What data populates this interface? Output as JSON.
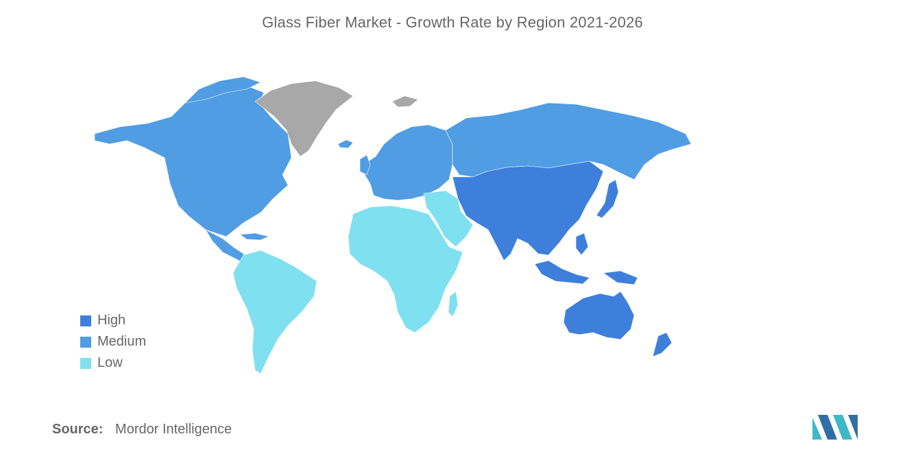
{
  "title": "Glass Fiber Market - Growth Rate by Region 2021-2026",
  "legend": [
    {
      "key": "high",
      "label": "High",
      "color": "#3e7fdc"
    },
    {
      "key": "medium",
      "label": "Medium",
      "color": "#519de4"
    },
    {
      "key": "low",
      "label": "Low",
      "color": "#7fe0ef"
    }
  ],
  "no_data_color": "#a8a8a8",
  "regions": {
    "north_america": "medium",
    "europe": "medium",
    "russia": "medium",
    "asia_pacific": "high",
    "australia": "high",
    "south_america": "low",
    "africa": "low",
    "middle_east": "low",
    "greenland": "none"
  },
  "source": {
    "label": "Source:",
    "value": "Mordor Intelligence"
  },
  "logo": {
    "icon": "mordor-intelligence-logo-icon"
  }
}
